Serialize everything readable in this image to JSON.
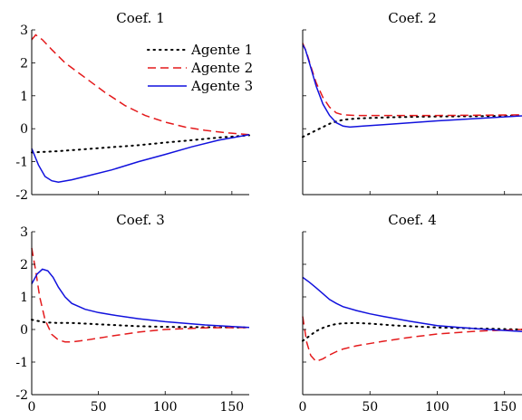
{
  "chart_data": {
    "type": "line",
    "x_ticks": [
      0,
      50,
      100,
      150
    ],
    "xlim": [
      0,
      163
    ],
    "ylim": [
      -2,
      3
    ],
    "y_ticks": [
      -2,
      -1,
      0,
      1,
      2,
      3
    ],
    "grid": false,
    "legend": {
      "placement": "top-right of first panel",
      "entries": [
        {
          "name": "Agente 1",
          "color": "#000000",
          "style": "dotted"
        },
        {
          "name": "Agente 2",
          "color": "#e41a1c",
          "style": "dashed"
        },
        {
          "name": "Agente 3",
          "color": "#1111dd",
          "style": "solid"
        }
      ]
    },
    "panels": [
      {
        "title": "Coef. 1",
        "show_y_tick_labels": true,
        "show_x_tick_labels": false,
        "series": [
          {
            "name": "Agente 1",
            "color": "#000000",
            "style": "dotted",
            "x": [
              0,
              20,
              40,
              60,
              80,
              100,
              120,
              140,
              163
            ],
            "y": [
              -0.72,
              -0.68,
              -0.62,
              -0.56,
              -0.5,
              -0.42,
              -0.35,
              -0.27,
              -0.2
            ]
          },
          {
            "name": "Agente 2",
            "color": "#e41a1c",
            "style": "dashed",
            "x": [
              0,
              3,
              8,
              15,
              25,
              40,
              55,
              70,
              85,
              100,
              115,
              130,
              145,
              163
            ],
            "y": [
              2.7,
              2.85,
              2.7,
              2.4,
              2.0,
              1.55,
              1.1,
              0.7,
              0.4,
              0.2,
              0.05,
              -0.05,
              -0.12,
              -0.18
            ]
          },
          {
            "name": "Agente 3",
            "color": "#1111dd",
            "style": "solid",
            "x": [
              0,
              5,
              10,
              15,
              20,
              30,
              40,
              60,
              80,
              100,
              120,
              140,
              163
            ],
            "y": [
              -0.6,
              -1.1,
              -1.45,
              -1.58,
              -1.62,
              -1.55,
              -1.45,
              -1.25,
              -1.0,
              -0.78,
              -0.55,
              -0.35,
              -0.18
            ]
          }
        ]
      },
      {
        "title": "Coef. 2",
        "show_y_tick_labels": false,
        "show_x_tick_labels": false,
        "series": [
          {
            "name": "Agente 1",
            "color": "#000000",
            "style": "dotted",
            "x": [
              0,
              5,
              10,
              15,
              20,
              25,
              30,
              40,
              60,
              80,
              100,
              130,
              163
            ],
            "y": [
              -0.25,
              -0.15,
              -0.05,
              0.05,
              0.15,
              0.22,
              0.27,
              0.31,
              0.34,
              0.36,
              0.37,
              0.38,
              0.4
            ]
          },
          {
            "name": "Agente 2",
            "color": "#e41a1c",
            "style": "dashed",
            "x": [
              0,
              3,
              6,
              10,
              15,
              20,
              25,
              30,
              40,
              60,
              80,
              100,
              130,
              163
            ],
            "y": [
              2.6,
              2.3,
              1.9,
              1.4,
              0.95,
              0.65,
              0.48,
              0.42,
              0.4,
              0.4,
              0.4,
              0.4,
              0.41,
              0.42
            ]
          },
          {
            "name": "Agente 3",
            "color": "#1111dd",
            "style": "solid",
            "x": [
              0,
              2,
              5,
              10,
              15,
              20,
              25,
              30,
              35,
              45,
              60,
              80,
              100,
              130,
              163
            ],
            "y": [
              2.55,
              2.4,
              2.0,
              1.3,
              0.75,
              0.4,
              0.18,
              0.08,
              0.05,
              0.08,
              0.12,
              0.18,
              0.24,
              0.31,
              0.39
            ]
          }
        ]
      },
      {
        "title": "Coef. 3",
        "show_y_tick_labels": true,
        "show_x_tick_labels": true,
        "series": [
          {
            "name": "Agente 1",
            "color": "#000000",
            "style": "dotted",
            "x": [
              0,
              10,
              20,
              30,
              40,
              60,
              80,
              100,
              130,
              163
            ],
            "y": [
              0.3,
              0.22,
              0.2,
              0.2,
              0.18,
              0.14,
              0.1,
              0.08,
              0.07,
              0.06
            ]
          },
          {
            "name": "Agente 2",
            "color": "#e41a1c",
            "style": "dashed",
            "x": [
              0,
              3,
              6,
              10,
              15,
              20,
              25,
              30,
              40,
              60,
              80,
              100,
              130,
              163
            ],
            "y": [
              2.5,
              1.8,
              1.0,
              0.3,
              -0.15,
              -0.32,
              -0.38,
              -0.38,
              -0.33,
              -0.2,
              -0.08,
              0.0,
              0.05,
              0.06
            ]
          },
          {
            "name": "Agente 3",
            "color": "#1111dd",
            "style": "solid",
            "x": [
              0,
              4,
              8,
              12,
              16,
              20,
              25,
              30,
              40,
              50,
              60,
              80,
              100,
              130,
              163
            ],
            "y": [
              1.4,
              1.7,
              1.85,
              1.8,
              1.6,
              1.3,
              1.0,
              0.8,
              0.62,
              0.52,
              0.45,
              0.33,
              0.24,
              0.14,
              0.06
            ]
          }
        ]
      },
      {
        "title": "Coef. 4",
        "show_y_tick_labels": false,
        "show_x_tick_labels": true,
        "series": [
          {
            "name": "Agente 1",
            "color": "#000000",
            "style": "dotted",
            "x": [
              0,
              5,
              10,
              15,
              20,
              25,
              30,
              40,
              50,
              70,
              100,
              130,
              163
            ],
            "y": [
              -0.35,
              -0.2,
              -0.05,
              0.05,
              0.12,
              0.17,
              0.19,
              0.2,
              0.18,
              0.12,
              0.06,
              0.03,
              0.0
            ]
          },
          {
            "name": "Agente 2",
            "color": "#e41a1c",
            "style": "dashed",
            "x": [
              0,
              3,
              6,
              10,
              15,
              20,
              25,
              30,
              40,
              60,
              80,
              100,
              130,
              163
            ],
            "y": [
              0.4,
              -0.4,
              -0.8,
              -0.98,
              -0.9,
              -0.78,
              -0.68,
              -0.6,
              -0.5,
              -0.36,
              -0.24,
              -0.14,
              -0.05,
              0.0
            ]
          },
          {
            "name": "Agente 3",
            "color": "#1111dd",
            "style": "solid",
            "x": [
              0,
              5,
              10,
              15,
              20,
              25,
              30,
              40,
              50,
              60,
              80,
              100,
              130,
              163
            ],
            "y": [
              1.6,
              1.45,
              1.28,
              1.1,
              0.92,
              0.8,
              0.7,
              0.58,
              0.48,
              0.4,
              0.25,
              0.12,
              0.02,
              -0.06
            ]
          }
        ]
      }
    ]
  }
}
